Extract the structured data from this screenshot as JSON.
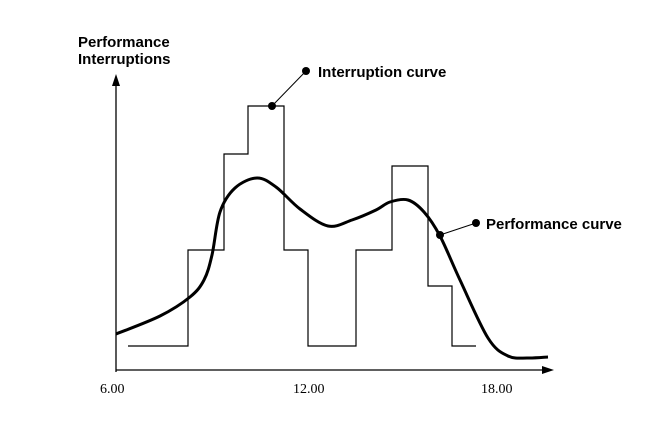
{
  "y_axis_label": [
    "Performance",
    "Interruptions"
  ],
  "x_ticks": [
    "6.00",
    "12.00",
    "18.00"
  ],
  "callouts": {
    "interruption": "Interruption curve",
    "performance": "Performance curve"
  },
  "colors": {
    "line": "#000000",
    "background": "#ffffff"
  }
}
